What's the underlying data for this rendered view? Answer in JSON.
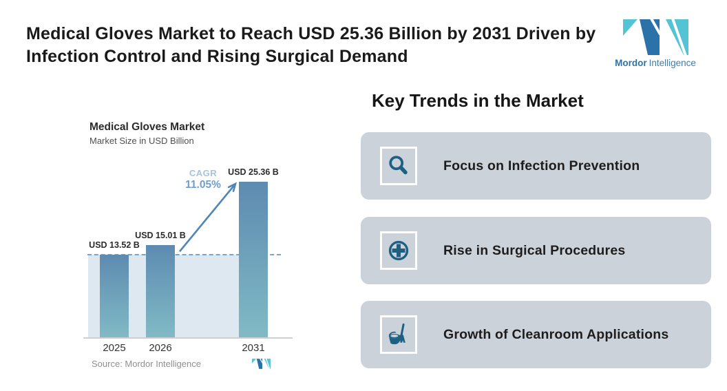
{
  "header": {
    "title_line1": "Medical Gloves Market to Reach USD 25.36 Billion by 2031 Driven by",
    "title_line2": "Infection Control and Rising Surgical Demand",
    "brand_bold": "Mordor",
    "brand_regular": "Intelligence"
  },
  "chart": {
    "title": "Medical Gloves Market",
    "subtitle": "Market Size in USD Billion",
    "cagr_label": "CAGR",
    "cagr_value": "11.05%",
    "source": "Source: Mordor Intelligence"
  },
  "chart_data": {
    "type": "bar",
    "title": "Medical Gloves Market",
    "ylabel": "Market Size in USD Billion",
    "categories": [
      "2025",
      "2026",
      "2031"
    ],
    "values": [
      13.52,
      15.01,
      25.36
    ],
    "value_labels": [
      "USD 13.52 B",
      "USD 15.01 B",
      "USD 25.36 B"
    ],
    "ylim": [
      0,
      25.36
    ],
    "grid": false,
    "legend": "none",
    "annotations": {
      "cagr": "11.05%",
      "dashed_reference_line_at_value": 13.52,
      "growth_arrow": "from 2026 bar to 2031 bar"
    }
  },
  "trends": {
    "heading": "Key Trends in the Market",
    "items": [
      {
        "label": "Focus on Infection Prevention",
        "icon": "search-icon"
      },
      {
        "label": "Rise in Surgical Procedures",
        "icon": "medical-cross-icon"
      },
      {
        "label": "Growth of Cleanroom Applications",
        "icon": "cleaning-bucket-broom-icon"
      }
    ]
  },
  "colors": {
    "accent_blue": "#2d73a6",
    "logo_blue": "#2a72a8",
    "logo_teal": "#54c4d4",
    "bar_top": "#5d8bb1",
    "bar_bottom": "#81bac5",
    "band": "#dde8f1",
    "dashed_line": "#77a4c9",
    "arrow": "#4f87b8",
    "cagr_label": "#a6c4de",
    "cagr_value": "#6f9ecb",
    "card_bg": "#ccd2da",
    "icon": "#1d6082",
    "text_dark": "#1a1a1a",
    "text_gray": "#4f4f4f",
    "source_gray": "#8f8f8f"
  }
}
